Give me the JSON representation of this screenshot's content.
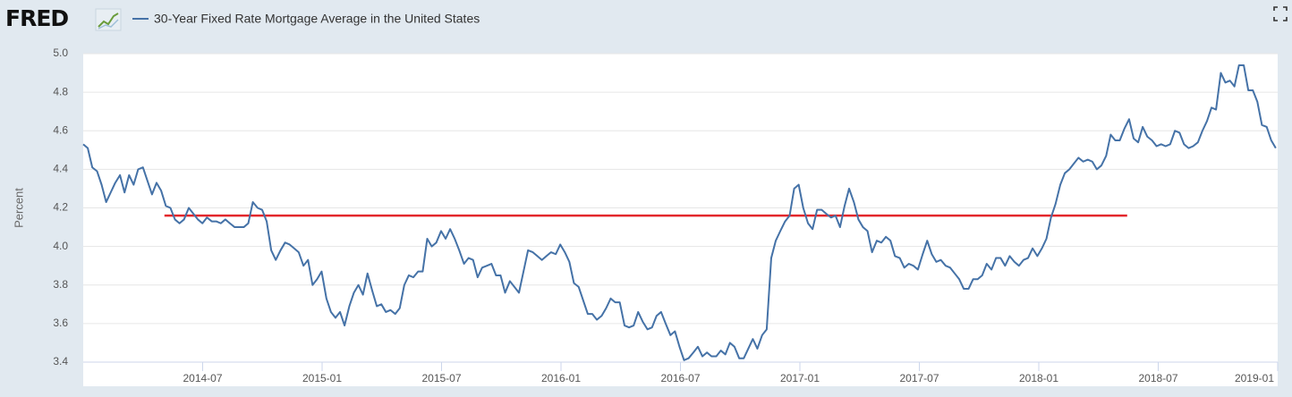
{
  "logo": "FRED",
  "chart_data": {
    "type": "line",
    "y_label": "Percent",
    "xlim": [
      2014.0,
      2019.0
    ],
    "xticks": [
      {
        "value": 2014.5,
        "label": "2014-07"
      },
      {
        "value": 2015.0,
        "label": "2015-01"
      },
      {
        "value": 2015.5,
        "label": "2015-07"
      },
      {
        "value": 2016.0,
        "label": "2016-01"
      },
      {
        "value": 2016.5,
        "label": "2016-07"
      },
      {
        "value": 2017.0,
        "label": "2017-01"
      },
      {
        "value": 2017.5,
        "label": "2017-07"
      },
      {
        "value": 2018.0,
        "label": "2018-01"
      },
      {
        "value": 2018.5,
        "label": "2018-07"
      },
      {
        "value": 2019.0,
        "label": "2019-01"
      }
    ],
    "ylim": [
      3.4,
      5.0
    ],
    "yticks": [
      3.4,
      3.6,
      3.8,
      {
        "value": 4.0,
        "label": "4.0"
      },
      4.2,
      4.4,
      4.6,
      4.8,
      {
        "value": 5.0,
        "label": "5.0"
      }
    ],
    "grid": true,
    "x": [
      2014.0,
      2014.019,
      2014.038,
      2014.058,
      2014.077,
      2014.096,
      2014.115,
      2014.134,
      2014.154,
      2014.173,
      2014.192,
      2014.211,
      2014.23,
      2014.25,
      2014.269,
      2014.288,
      2014.307,
      2014.326,
      2014.346,
      2014.365,
      2014.384,
      2014.403,
      2014.422,
      2014.442,
      2014.461,
      2014.48,
      2014.499,
      2014.518,
      2014.538,
      2014.557,
      2014.576,
      2014.595,
      2014.614,
      2014.634,
      2014.653,
      2014.672,
      2014.691,
      2014.71,
      2014.73,
      2014.749,
      2014.768,
      2014.787,
      2014.806,
      2014.826,
      2014.845,
      2014.864,
      2014.883,
      2014.902,
      2014.922,
      2014.941,
      2014.96,
      2014.979,
      2014.998,
      2015.018,
      2015.037,
      2015.056,
      2015.075,
      2015.094,
      2015.114,
      2015.133,
      2015.152,
      2015.171,
      2015.19,
      2015.21,
      2015.229,
      2015.248,
      2015.267,
      2015.286,
      2015.306,
      2015.325,
      2015.344,
      2015.363,
      2015.382,
      2015.402,
      2015.421,
      2015.44,
      2015.459,
      2015.478,
      2015.498,
      2015.517,
      2015.536,
      2015.555,
      2015.574,
      2015.594,
      2015.613,
      2015.632,
      2015.651,
      2015.67,
      2015.69,
      2015.709,
      2015.728,
      2015.747,
      2015.766,
      2015.786,
      2015.805,
      2015.824,
      2015.843,
      2015.862,
      2015.882,
      2015.901,
      2015.92,
      2015.939,
      2015.958,
      2015.978,
      2015.997,
      2016.016,
      2016.035,
      2016.054,
      2016.074,
      2016.093,
      2016.112,
      2016.131,
      2016.15,
      2016.17,
      2016.189,
      2016.208,
      2016.227,
      2016.246,
      2016.266,
      2016.285,
      2016.304,
      2016.323,
      2016.342,
      2016.362,
      2016.381,
      2016.4,
      2016.419,
      2016.438,
      2016.458,
      2016.477,
      2016.496,
      2016.515,
      2016.534,
      2016.554,
      2016.573,
      2016.592,
      2016.611,
      2016.63,
      2016.65,
      2016.669,
      2016.688,
      2016.707,
      2016.726,
      2016.746,
      2016.765,
      2016.784,
      2016.803,
      2016.822,
      2016.842,
      2016.861,
      2016.88,
      2016.899,
      2016.918,
      2016.938,
      2016.957,
      2016.976,
      2016.995,
      2017.014,
      2017.034,
      2017.053,
      2017.072,
      2017.091,
      2017.11,
      2017.13,
      2017.149,
      2017.168,
      2017.187,
      2017.206,
      2017.226,
      2017.245,
      2017.264,
      2017.283,
      2017.302,
      2017.322,
      2017.341,
      2017.36,
      2017.379,
      2017.398,
      2017.418,
      2017.437,
      2017.456,
      2017.475,
      2017.494,
      2017.514,
      2017.533,
      2017.552,
      2017.571,
      2017.59,
      2017.61,
      2017.629,
      2017.648,
      2017.667,
      2017.686,
      2017.706,
      2017.725,
      2017.744,
      2017.763,
      2017.782,
      2017.802,
      2017.821,
      2017.84,
      2017.859,
      2017.878,
      2017.898,
      2017.917,
      2017.936,
      2017.955,
      2017.974,
      2017.994,
      2018.013,
      2018.032,
      2018.051,
      2018.07,
      2018.09,
      2018.109,
      2018.128,
      2018.147,
      2018.166,
      2018.186,
      2018.205,
      2018.224,
      2018.243,
      2018.262,
      2018.282,
      2018.301,
      2018.32,
      2018.339,
      2018.358,
      2018.378,
      2018.397,
      2018.416,
      2018.435,
      2018.454,
      2018.474,
      2018.493,
      2018.512,
      2018.531,
      2018.55,
      2018.57,
      2018.589,
      2018.608,
      2018.627,
      2018.646,
      2018.666,
      2018.685,
      2018.704,
      2018.723,
      2018.742,
      2018.762,
      2018.781,
      2018.8,
      2018.819,
      2018.838,
      2018.858,
      2018.877,
      2018.896,
      2018.915,
      2018.934,
      2018.954,
      2018.973,
      2018.992
    ],
    "series": [
      {
        "name": "30-Year Fixed Rate Mortgage Average in the United States",
        "color": "#4572a7",
        "values": [
          4.53,
          4.51,
          4.41,
          4.39,
          4.32,
          4.23,
          4.28,
          4.33,
          4.37,
          4.28,
          4.37,
          4.32,
          4.4,
          4.41,
          4.34,
          4.27,
          4.33,
          4.29,
          4.21,
          4.2,
          4.14,
          4.12,
          4.14,
          4.2,
          4.17,
          4.14,
          4.12,
          4.15,
          4.13,
          4.13,
          4.12,
          4.14,
          4.12,
          4.1,
          4.1,
          4.1,
          4.12,
          4.23,
          4.2,
          4.19,
          4.13,
          3.98,
          3.93,
          3.98,
          4.02,
          4.01,
          3.99,
          3.97,
          3.9,
          3.93,
          3.8,
          3.83,
          3.87,
          3.73,
          3.66,
          3.63,
          3.66,
          3.59,
          3.69,
          3.76,
          3.8,
          3.75,
          3.86,
          3.77,
          3.69,
          3.7,
          3.66,
          3.67,
          3.65,
          3.68,
          3.8,
          3.85,
          3.84,
          3.87,
          3.87,
          4.04,
          4.0,
          4.02,
          4.08,
          4.04,
          4.09,
          4.04,
          3.98,
          3.91,
          3.94,
          3.93,
          3.84,
          3.89,
          3.9,
          3.91,
          3.85,
          3.85,
          3.76,
          3.82,
          3.79,
          3.76,
          3.87,
          3.98,
          3.97,
          3.95,
          3.93,
          3.95,
          3.97,
          3.96,
          4.01,
          3.97,
          3.92,
          3.81,
          3.79,
          3.72,
          3.65,
          3.65,
          3.62,
          3.64,
          3.68,
          3.73,
          3.71,
          3.71,
          3.59,
          3.58,
          3.59,
          3.66,
          3.61,
          3.57,
          3.58,
          3.64,
          3.66,
          3.6,
          3.54,
          3.56,
          3.48,
          3.41,
          3.42,
          3.45,
          3.48,
          3.43,
          3.45,
          3.43,
          3.43,
          3.46,
          3.44,
          3.5,
          3.48,
          3.42,
          3.42,
          3.47,
          3.52,
          3.47,
          3.54,
          3.57,
          3.94,
          4.03,
          4.08,
          4.13,
          4.16,
          4.3,
          4.32,
          4.2,
          4.12,
          4.09,
          4.19,
          4.19,
          4.17,
          4.15,
          4.16,
          4.1,
          4.21,
          4.3,
          4.23,
          4.14,
          4.1,
          4.08,
          3.97,
          4.03,
          4.02,
          4.05,
          4.03,
          3.95,
          3.94,
          3.89,
          3.91,
          3.9,
          3.88,
          3.96,
          4.03,
          3.96,
          3.92,
          3.93,
          3.9,
          3.89,
          3.86,
          3.83,
          3.78,
          3.78,
          3.83,
          3.83,
          3.85,
          3.91,
          3.88,
          3.94,
          3.94,
          3.9,
          3.95,
          3.92,
          3.9,
          3.93,
          3.94,
          3.99,
          3.95,
          3.99,
          4.04,
          4.15,
          4.22,
          4.32,
          4.38,
          4.4,
          4.43,
          4.46,
          4.44,
          4.45,
          4.44,
          4.4,
          4.42,
          4.47,
          4.58,
          4.55,
          4.55,
          4.61,
          4.66,
          4.56,
          4.54,
          4.62,
          4.57,
          4.55,
          4.52,
          4.53,
          4.52,
          4.53,
          4.6,
          4.59,
          4.53,
          4.51,
          4.52,
          4.54,
          4.6,
          4.65,
          4.72,
          4.71,
          4.9,
          4.85,
          4.86,
          4.83,
          4.94,
          4.94,
          4.81,
          4.81,
          4.75,
          4.63,
          4.62,
          4.55,
          4.51
        ]
      }
    ],
    "reference_line": {
      "value": 4.16,
      "x": [
        2014.34,
        2018.37
      ],
      "color": "#e3262b"
    }
  }
}
